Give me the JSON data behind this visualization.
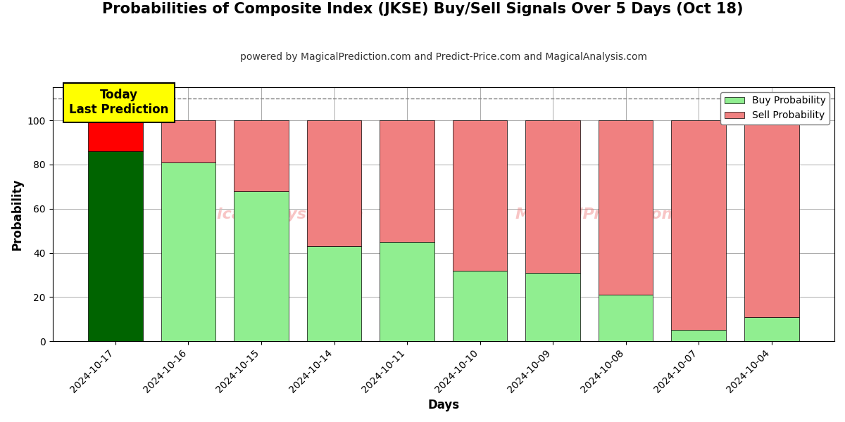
{
  "title": "Probabilities of Composite Index (JKSE) Buy/Sell Signals Over 5 Days (Oct 18)",
  "subtitle": "powered by MagicalPrediction.com and Predict-Price.com and MagicalAnalysis.com",
  "xlabel": "Days",
  "ylabel": "Probability",
  "dates": [
    "2024-10-17",
    "2024-10-16",
    "2024-10-15",
    "2024-10-14",
    "2024-10-11",
    "2024-10-10",
    "2024-10-09",
    "2024-10-08",
    "2024-10-07",
    "2024-10-04"
  ],
  "buy_values": [
    86,
    81,
    68,
    43,
    45,
    32,
    31,
    21,
    5,
    11
  ],
  "sell_values": [
    14,
    19,
    32,
    57,
    55,
    68,
    69,
    79,
    95,
    89
  ],
  "today_buy_color": "#006400",
  "today_sell_color": "#ff0000",
  "buy_color": "#90ee90",
  "sell_color": "#f08080",
  "today_annotation_bg": "#ffff00",
  "today_annotation_text": "Today\nLast Prediction",
  "dashed_line_y": 110,
  "ylim": [
    0,
    115
  ],
  "bar_width": 0.75,
  "legend_buy_label": "Buy Probability",
  "legend_sell_label": "Sell Probability",
  "background_color": "#ffffff",
  "grid_color": "#aaaaaa",
  "title_fontsize": 15,
  "subtitle_fontsize": 10,
  "axis_label_fontsize": 12
}
